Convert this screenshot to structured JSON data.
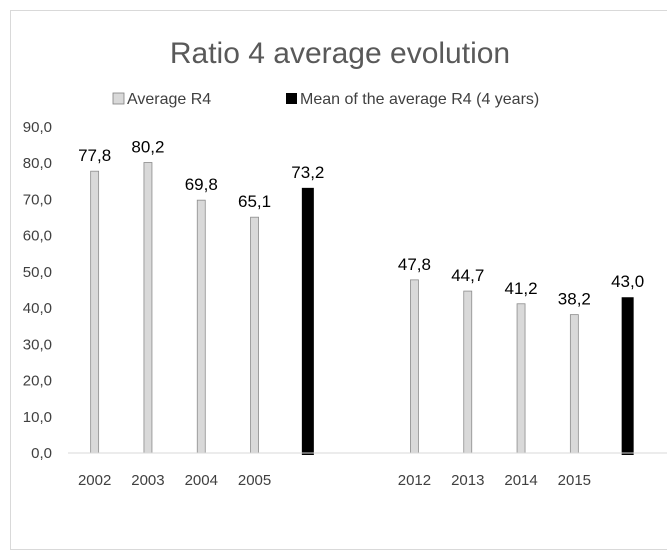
{
  "chart_data": {
    "type": "bar",
    "title": "Ratio 4 average evolution",
    "xlabel": "",
    "ylabel": "",
    "ylim": [
      0,
      90
    ],
    "yticks": [
      "0,0",
      "10,0",
      "20,0",
      "30,0",
      "40,0",
      "50,0",
      "60,0",
      "70,0",
      "80,0",
      "90,0"
    ],
    "grid": false,
    "legend_position": "top",
    "categories": [
      "2002",
      "2003",
      "2004",
      "2005",
      "",
      "",
      "2012",
      "2013",
      "2014",
      "2015",
      ""
    ],
    "series": [
      {
        "name": "Average R4",
        "color": "#d9d9d9",
        "values": [
          77.8,
          80.2,
          69.8,
          65.1,
          null,
          null,
          47.8,
          44.7,
          41.2,
          38.2,
          null
        ],
        "labels": [
          "77,8",
          "80,2",
          "69,8",
          "65,1",
          "",
          "",
          "47,8",
          "44,7",
          "41,2",
          "38,2",
          ""
        ]
      },
      {
        "name": "Mean of the average R4 (4 years)",
        "color": "#000000",
        "values": [
          null,
          null,
          null,
          null,
          73.2,
          null,
          null,
          null,
          null,
          null,
          43.0
        ],
        "labels": [
          "",
          "",
          "",
          "",
          "73,2",
          "",
          "",
          "",
          "",
          "",
          "43,0"
        ]
      }
    ]
  }
}
